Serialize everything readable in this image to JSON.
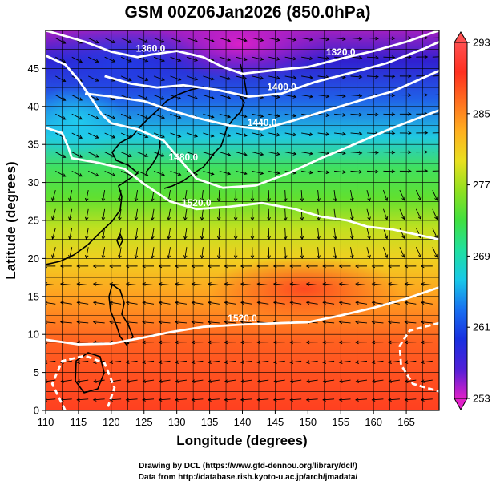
{
  "title": "GSM 00Z06Jan2026 (850.0hPa)",
  "x_axis": {
    "label": "Longitude (degrees)",
    "min": 110,
    "max": 170,
    "ticks": [
      "110",
      "115",
      "120",
      "125",
      "130",
      "135",
      "140",
      "145",
      "150",
      "155",
      "160",
      "165"
    ]
  },
  "y_axis": {
    "label": "Latitude (degrees)",
    "min": 0,
    "max": 50,
    "ticks": [
      "0",
      "5",
      "10",
      "15",
      "20",
      "25",
      "30",
      "35",
      "40",
      "45"
    ]
  },
  "colorbar": {
    "min": 253,
    "max": 293,
    "labels": [
      "293",
      "285",
      "277",
      "269",
      "261",
      "253"
    ],
    "stops": [
      "#e020c8",
      "#5020d8",
      "#1830e0",
      "#1870f0",
      "#18c8e8",
      "#20e0a0",
      "#40e040",
      "#90e020",
      "#e8e020",
      "#ffb020",
      "#ff7020",
      "#ff3020",
      "#ff5050"
    ]
  },
  "contours": [
    {
      "label": "1320.0",
      "points": [
        [
          140,
          44.3
        ],
        [
          145,
          44.8
        ],
        [
          150,
          45.2
        ],
        [
          155,
          46.3
        ],
        [
          160,
          47.3
        ],
        [
          165,
          48.5
        ],
        [
          170,
          50
        ]
      ]
    },
    {
      "label": "1360.0",
      "points": [
        [
          110,
          50
        ],
        [
          116,
          48.5
        ],
        [
          120,
          47.2
        ],
        [
          124,
          46.5
        ],
        [
          126,
          46.8
        ],
        [
          130,
          47.3
        ],
        [
          134,
          46.5
        ],
        [
          137,
          45.2
        ],
        [
          140,
          44.3
        ]
      ]
    },
    {
      "label": "1400.0",
      "points": [
        [
          119,
          44
        ],
        [
          123,
          43
        ],
        [
          127,
          42.5
        ],
        [
          131,
          42.8
        ],
        [
          136,
          42.2
        ],
        [
          141,
          41.3
        ],
        [
          146,
          41.7
        ],
        [
          151,
          43.2
        ],
        [
          156,
          44.3
        ],
        [
          162,
          45.7
        ],
        [
          168,
          47.7
        ],
        [
          170,
          48.5
        ]
      ]
    },
    {
      "label": "1440.0",
      "points": [
        [
          116,
          41.7
        ],
        [
          120,
          41.3
        ],
        [
          125,
          40.7
        ],
        [
          129,
          39.5
        ],
        [
          133,
          38.5
        ],
        [
          138,
          37.5
        ],
        [
          143,
          37.0
        ],
        [
          148,
          38.2
        ],
        [
          153,
          39.5
        ],
        [
          158,
          40.8
        ],
        [
          163,
          42.0
        ],
        [
          170,
          44.7
        ]
      ]
    },
    {
      "label": "1480.0",
      "points": [
        [
          110,
          46.7
        ],
        [
          113,
          45.5
        ],
        [
          115,
          43.5
        ],
        [
          117,
          41.0
        ],
        [
          118.5,
          39.0
        ],
        [
          120,
          37.8
        ],
        [
          124,
          37.0
        ],
        [
          128,
          35.5
        ],
        [
          131,
          32.5
        ],
        [
          133,
          30.5
        ],
        [
          137,
          29.3
        ],
        [
          142,
          29.6
        ],
        [
          147,
          31.2
        ],
        [
          152,
          33.2
        ],
        [
          157,
          35.0
        ],
        [
          163,
          37.2
        ],
        [
          170,
          39.5
        ]
      ]
    },
    {
      "label": "1520.0",
      "points": [
        [
          110,
          37.2
        ],
        [
          112.5,
          36.5
        ],
        [
          113.5,
          34.5
        ],
        [
          114,
          33.2
        ],
        [
          118,
          32.6
        ],
        [
          122,
          31.8
        ],
        [
          125,
          29.8
        ],
        [
          129,
          27.5
        ],
        [
          133,
          26.5
        ],
        [
          138,
          26.8
        ],
        [
          143,
          27.3
        ],
        [
          148,
          26.5
        ],
        [
          152,
          25.5
        ],
        [
          156,
          25.0
        ],
        [
          159,
          24.2
        ],
        [
          163,
          23.8
        ],
        [
          170,
          22.5
        ]
      ]
    },
    {
      "label": "1520.0",
      "points": [
        [
          110,
          9.3
        ],
        [
          115,
          8.7
        ],
        [
          120,
          8.8
        ],
        [
          125,
          9.6
        ],
        [
          129,
          10.3
        ],
        [
          134,
          11.0
        ],
        [
          140,
          11.3
        ],
        [
          146,
          11.5
        ],
        [
          150,
          11.6
        ],
        [
          155,
          12.5
        ],
        [
          160,
          13.5
        ],
        [
          165,
          14.7
        ],
        [
          170,
          16.2
        ]
      ]
    }
  ],
  "closed_contours": [
    [
      [
        113,
        0
      ],
      [
        111,
        3.5
      ],
      [
        112.5,
        6.5
      ],
      [
        116,
        7.2
      ],
      [
        119,
        6.2
      ],
      [
        120.5,
        3.0
      ],
      [
        119.5,
        0.5
      ]
    ],
    [
      [
        170,
        11.5
      ],
      [
        165.5,
        10.5
      ],
      [
        164,
        8.5
      ],
      [
        164.2,
        6
      ],
      [
        166,
        3.5
      ],
      [
        170,
        2.5
      ]
    ]
  ],
  "credits": [
    "Drawing by DCL (https://www.gfd-dennou.org/library/dcl/)",
    "Data from http://database.rish.kyoto-u.ac.jp/arch/jmadata/"
  ]
}
